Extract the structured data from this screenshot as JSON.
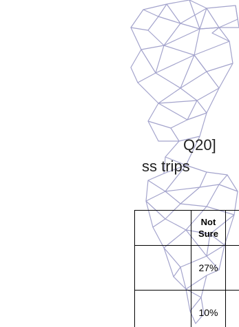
{
  "heading": {
    "line1": "Q20]",
    "line2": "ss trips"
  },
  "table": {
    "header": "Not Sure",
    "values": [
      "27%",
      "10%"
    ]
  },
  "colors": {
    "map_lines": "#a3a3cc",
    "text": "#222222",
    "border": "#000000"
  }
}
